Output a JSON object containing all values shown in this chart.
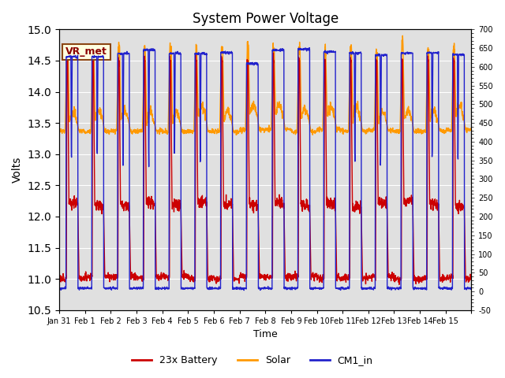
{
  "title": "System Power Voltage",
  "xlabel": "Time",
  "ylabel": "Volts",
  "ylim_left": [
    10.5,
    15.0
  ],
  "ylim_right": [
    -50,
    700
  ],
  "xtick_positions": [
    0,
    1,
    2,
    3,
    4,
    5,
    6,
    7,
    8,
    9,
    10,
    11,
    12,
    13,
    14,
    15,
    16
  ],
  "xtick_labels": [
    "Jan 31",
    "Feb 1",
    "Feb 2",
    "Feb 3",
    "Feb 4",
    "Feb 5",
    "Feb 6",
    "Feb 7",
    "Feb 8",
    "Feb 9",
    "Feb 10",
    "Feb 11",
    "Feb 12",
    "Feb 13",
    "Feb 14",
    "Feb 15",
    ""
  ],
  "yticks_left": [
    10.5,
    11.0,
    11.5,
    12.0,
    12.5,
    13.0,
    13.5,
    14.0,
    14.5,
    15.0
  ],
  "color_battery": "#cc0000",
  "color_solar": "#ff9900",
  "color_cm1": "#2222cc",
  "legend_labels": [
    "23x Battery",
    "Solar",
    "CM1_in"
  ],
  "annotation_text": "VR_met",
  "bg_color": "#e0e0e0",
  "grid_color": "#ffffff",
  "linewidth": 1.0,
  "days": 16,
  "ppd": 120
}
